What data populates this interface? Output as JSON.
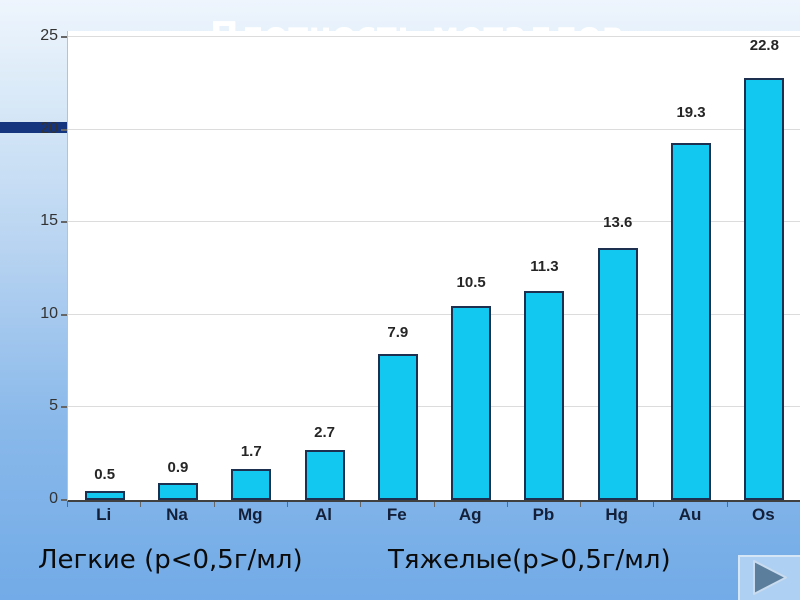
{
  "slide": {
    "title": "Плотность металлов",
    "caption_light": "Легкие (р<0,5г/мл)",
    "caption_heavy": "Тяжелые(р>0,5г/мл)"
  },
  "chart_data": {
    "type": "bar",
    "title": "Плотность металлов",
    "categories": [
      "Li",
      "Na",
      "Mg",
      "Al",
      "Fe",
      "Ag",
      "Pb",
      "Hg",
      "Au",
      "Os"
    ],
    "values": [
      0.5,
      0.9,
      1.7,
      2.7,
      7.9,
      10.5,
      11.3,
      13.6,
      19.3,
      22.8
    ],
    "xlabel": "",
    "ylabel": "",
    "ylim": [
      0,
      25
    ],
    "yticks": [
      0,
      5,
      10,
      15,
      20,
      25
    ],
    "grid": true,
    "legend": false,
    "data_labels": true
  },
  "colors": {
    "background_top": "#eef5fd",
    "background_bottom": "#72abe7",
    "accent_stripe": "#15357e",
    "plot_background": "#ffffff",
    "bar_fill": "#12c8f0",
    "bar_border": "#1d3050",
    "gridline": "#dcdcdc",
    "axis": "#404040",
    "nav_button_bg": "#aed0f2",
    "nav_arrow": "#5c7e9d"
  },
  "icons": {
    "next_button": "play-arrow-icon"
  }
}
